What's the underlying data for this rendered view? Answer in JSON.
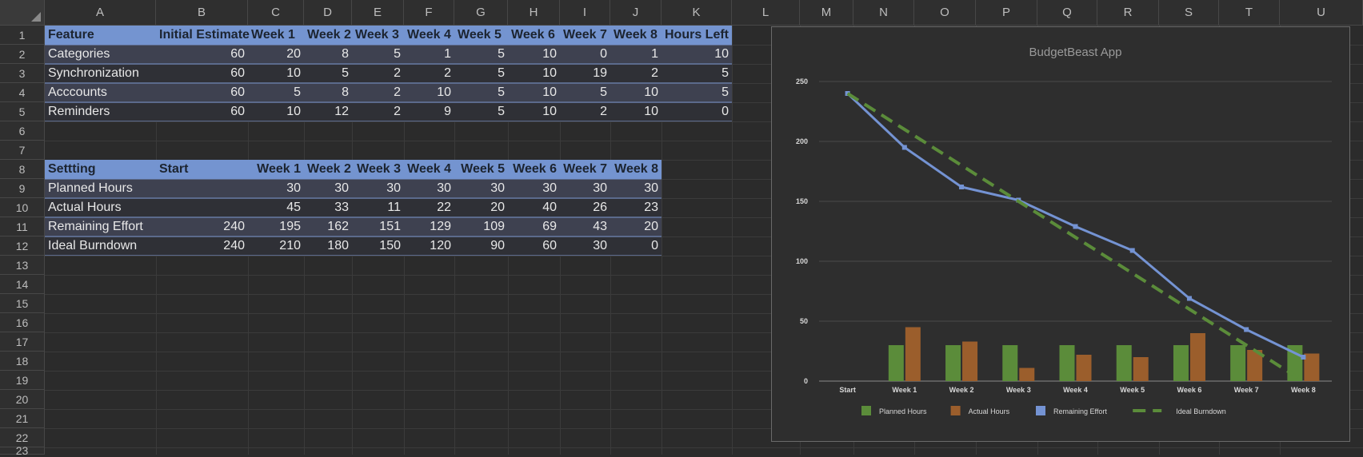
{
  "columns": [
    "A",
    "B",
    "C",
    "D",
    "E",
    "F",
    "G",
    "H",
    "I",
    "J",
    "K",
    "L",
    "M",
    "N",
    "O",
    "P",
    "Q",
    "R",
    "S",
    "T",
    "U"
  ],
  "rows": [
    "1",
    "2",
    "3",
    "4",
    "5",
    "6",
    "7",
    "8",
    "9",
    "10",
    "11",
    "12",
    "13",
    "14",
    "15",
    "16",
    "17",
    "18",
    "19",
    "20",
    "21",
    "22",
    "23"
  ],
  "table1": {
    "headers": [
      "Feature",
      "Initial Estimate",
      "Week 1",
      "Week 2",
      "Week 3",
      "Week 4",
      "Week 5",
      "Week 6",
      "Week 7",
      "Week 8",
      "Hours Left"
    ],
    "rows": [
      [
        "Categories",
        "60",
        "20",
        "8",
        "5",
        "1",
        "5",
        "10",
        "0",
        "1",
        "10"
      ],
      [
        "Synchronization",
        "60",
        "10",
        "5",
        "2",
        "2",
        "5",
        "10",
        "19",
        "2",
        "5"
      ],
      [
        "Acccounts",
        "60",
        "5",
        "8",
        "2",
        "10",
        "5",
        "10",
        "5",
        "10",
        "5"
      ],
      [
        "Reminders",
        "60",
        "10",
        "12",
        "2",
        "9",
        "5",
        "10",
        "2",
        "10",
        "0"
      ]
    ]
  },
  "table2": {
    "headers": [
      "Settting",
      "Start",
      "Week 1",
      "Week 2",
      "Week 3",
      "Week 4",
      "Week 5",
      "Week 6",
      "Week 7",
      "Week 8"
    ],
    "rows": [
      [
        "Planned Hours",
        "",
        "30",
        "30",
        "30",
        "30",
        "30",
        "30",
        "30",
        "30"
      ],
      [
        "Actual Hours",
        "",
        "45",
        "33",
        "11",
        "22",
        "20",
        "40",
        "26",
        "23"
      ],
      [
        "Remaining Effort",
        "240",
        "195",
        "162",
        "151",
        "129",
        "109",
        "69",
        "43",
        "20"
      ],
      [
        "Ideal Burndown",
        "240",
        "210",
        "180",
        "150",
        "120",
        "90",
        "60",
        "30",
        "0"
      ]
    ]
  },
  "chart_data": {
    "type": "bar",
    "title": "BudgetBeast App",
    "categories": [
      "Start",
      "Week 1",
      "Week 2",
      "Week 3",
      "Week 4",
      "Week 5",
      "Week 6",
      "Week 7",
      "Week 8"
    ],
    "ylim": [
      0,
      250
    ],
    "yticks": [
      0,
      50,
      100,
      150,
      200,
      250
    ],
    "grid": true,
    "legend_position": "bottom",
    "series": [
      {
        "name": "Planned Hours",
        "kind": "bar",
        "color": "#5b8c3a",
        "values": [
          null,
          30,
          30,
          30,
          30,
          30,
          30,
          30,
          30
        ]
      },
      {
        "name": "Actual Hours",
        "kind": "bar",
        "color": "#9b5e2c",
        "values": [
          null,
          45,
          33,
          11,
          22,
          20,
          40,
          26,
          23
        ]
      },
      {
        "name": "Remaining Effort",
        "kind": "line",
        "color": "#7493d3",
        "values": [
          240,
          195,
          162,
          151,
          129,
          109,
          69,
          43,
          20
        ]
      },
      {
        "name": "Ideal Burndown",
        "kind": "dashed-line",
        "color": "#5b8c3a",
        "values": [
          240,
          210,
          180,
          150,
          120,
          90,
          60,
          30,
          0
        ]
      }
    ]
  }
}
